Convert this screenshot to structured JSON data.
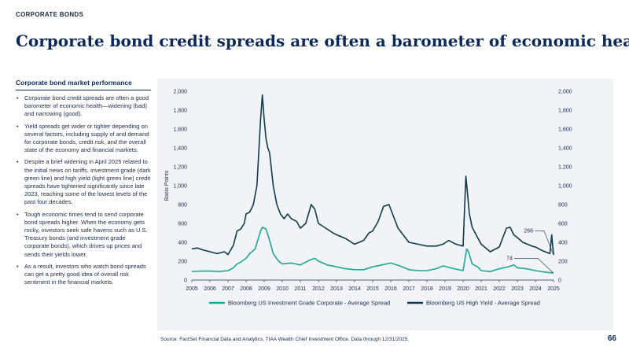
{
  "header": {
    "section_label": "CORPORATE BONDS",
    "title": "Corporate bond credit spreads are often a barometer of economic health"
  },
  "sidebar": {
    "heading": "Corporate bond market performance",
    "bullets": [
      "Corporate bond credit spreads are often a good barometer of economic health—widening (bad) and narrowing (good).",
      "Yield spreads get wider or tighter depending on several factors, including supply of and demand for corporate bonds, credit risk, and the overall state of the economy and financial markets.",
      "Despite a brief widening in April 2025 related to the initial news on tariffs, investment grade (dark green line) and high yield (light green line) credit spreads have tightened significantly since late 2023, reaching some of the lowest levels of the past four decades.",
      "Tough economic times tend to send corporate bond spreads higher. When the economy gets rocky, investors seek safe havens such as U.S. Treasury bonds (and investment grade corporate bonds), which drives up prices and sends their yields lower.",
      "As a result, investors who watch bond spreads can get a pretty good idea of overall risk sentiment in the financial markets."
    ]
  },
  "footer": {
    "source": "Source: FactSet Financial Data and Analytics, TIAA Wealth Chief Investment Office. Data through 12/31/2025.",
    "page_number": "66"
  },
  "colors": {
    "high_yield": "#0f3b4c",
    "investment_grade": "#1aa896",
    "title": "#0b2a5b",
    "plot_background": "#f1f3f6"
  },
  "chart_data": {
    "type": "line",
    "ylabel": "Basis Points",
    "xlim": [
      2005,
      2025
    ],
    "ylim": [
      0,
      2000
    ],
    "x_ticks": [
      "2005",
      "2006",
      "2007",
      "2008",
      "2009",
      "2010",
      "2011",
      "2012",
      "2013",
      "2014",
      "2015",
      "2016",
      "2017",
      "2018",
      "2019",
      "2020",
      "2021",
      "2022",
      "2023",
      "2024",
      "2025"
    ],
    "y_ticks": [
      "0",
      "200",
      "400",
      "600",
      "800",
      "1,000",
      "1,200",
      "1,400",
      "1,600",
      "1,800",
      "2,000"
    ],
    "legend_position": "bottom",
    "series": [
      {
        "name": "Bloomberg US Investment Grade Corporate - Average Spread",
        "color": "#1aa896",
        "end_label": "74",
        "x": [
          2005.0,
          2005.5,
          2006.0,
          2006.5,
          2007.0,
          2007.3,
          2007.5,
          2007.7,
          2008.0,
          2008.2,
          2008.5,
          2008.8,
          2008.9,
          2009.1,
          2009.3,
          2009.5,
          2009.8,
          2010.0,
          2010.5,
          2011.0,
          2011.5,
          2011.8,
          2012.0,
          2012.5,
          2013.0,
          2013.5,
          2014.0,
          2014.5,
          2015.0,
          2015.5,
          2016.0,
          2016.5,
          2017.0,
          2017.5,
          2018.0,
          2018.5,
          2018.9,
          2019.5,
          2020.0,
          2020.2,
          2020.3,
          2020.5,
          2020.8,
          2021.0,
          2021.5,
          2022.0,
          2022.5,
          2022.8,
          2023.0,
          2023.5,
          2024.0,
          2024.5,
          2025.0
        ],
        "values": [
          90,
          95,
          95,
          90,
          100,
          130,
          170,
          190,
          230,
          280,
          330,
          520,
          560,
          540,
          420,
          280,
          200,
          170,
          180,
          160,
          210,
          230,
          200,
          160,
          140,
          120,
          110,
          110,
          140,
          160,
          180,
          150,
          110,
          100,
          100,
          120,
          150,
          120,
          100,
          330,
          300,
          170,
          140,
          100,
          90,
          120,
          140,
          160,
          130,
          120,
          100,
          85,
          74
        ]
      },
      {
        "name": "Bloomberg US High Yield - Average Spread",
        "color": "#0f3b4c",
        "end_label": "266",
        "x": [
          2005.0,
          2005.3,
          2005.6,
          2006.0,
          2006.4,
          2006.8,
          2007.0,
          2007.3,
          2007.5,
          2007.7,
          2007.9,
          2008.0,
          2008.2,
          2008.4,
          2008.6,
          2008.8,
          2008.9,
          2009.0,
          2009.1,
          2009.2,
          2009.3,
          2009.5,
          2009.7,
          2009.9,
          2010.1,
          2010.3,
          2010.5,
          2010.8,
          2011.0,
          2011.3,
          2011.6,
          2011.8,
          2012.0,
          2012.4,
          2012.8,
          2013.0,
          2013.5,
          2014.0,
          2014.5,
          2014.8,
          2015.0,
          2015.3,
          2015.6,
          2015.9,
          2016.1,
          2016.4,
          2016.8,
          2017.0,
          2017.5,
          2018.0,
          2018.5,
          2018.9,
          2019.2,
          2019.6,
          2020.0,
          2020.15,
          2020.25,
          2020.35,
          2020.5,
          2020.8,
          2021.0,
          2021.5,
          2022.0,
          2022.4,
          2022.6,
          2022.8,
          2023.0,
          2023.3,
          2023.8,
          2024.0,
          2024.4,
          2024.8,
          2024.9,
          2025.0
        ],
        "values": [
          330,
          340,
          320,
          300,
          280,
          300,
          270,
          370,
          520,
          540,
          600,
          700,
          720,
          800,
          1000,
          1700,
          1960,
          1700,
          1500,
          1400,
          1350,
          1000,
          800,
          700,
          650,
          700,
          650,
          620,
          550,
          600,
          800,
          750,
          600,
          550,
          500,
          480,
          440,
          380,
          420,
          500,
          520,
          620,
          780,
          800,
          700,
          550,
          450,
          400,
          380,
          360,
          360,
          380,
          420,
          380,
          360,
          1100,
          900,
          700,
          560,
          450,
          380,
          300,
          350,
          550,
          560,
          480,
          450,
          400,
          360,
          350,
          310,
          280,
          480,
          266
        ]
      }
    ]
  }
}
